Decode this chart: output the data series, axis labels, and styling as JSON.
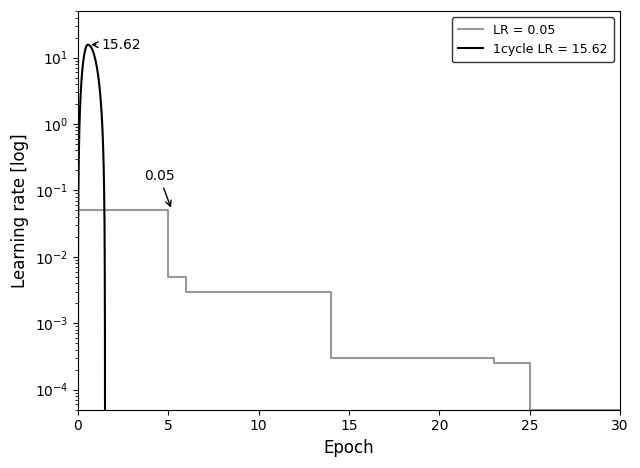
{
  "title": "",
  "xlabel": "Epoch",
  "ylabel": "Learning rate [log]",
  "xlim": [
    0,
    30
  ],
  "ylim": [
    5e-05,
    50
  ],
  "one_cycle_peak": 15.62,
  "one_cycle_peak_epoch": 0.55,
  "one_cycle_start_lr": 5e-05,
  "one_cycle_end_lr": 5e-05,
  "one_cycle_total_epochs": 1.5,
  "step_lr_x": [
    0,
    5,
    5,
    6,
    6,
    14,
    14,
    23,
    23,
    25,
    25,
    30
  ],
  "step_lr_y": [
    0.05,
    0.05,
    0.005,
    0.005,
    0.003,
    0.003,
    0.0003,
    0.0003,
    0.00025,
    0.00025,
    5e-05,
    5e-05
  ],
  "one_cycle_color": "#000000",
  "step_lr_color": "#999999",
  "legend_label_1cycle": "1cycle LR = 15.62",
  "legend_label_step": "LR = 0.05",
  "background_color": "#ffffff"
}
